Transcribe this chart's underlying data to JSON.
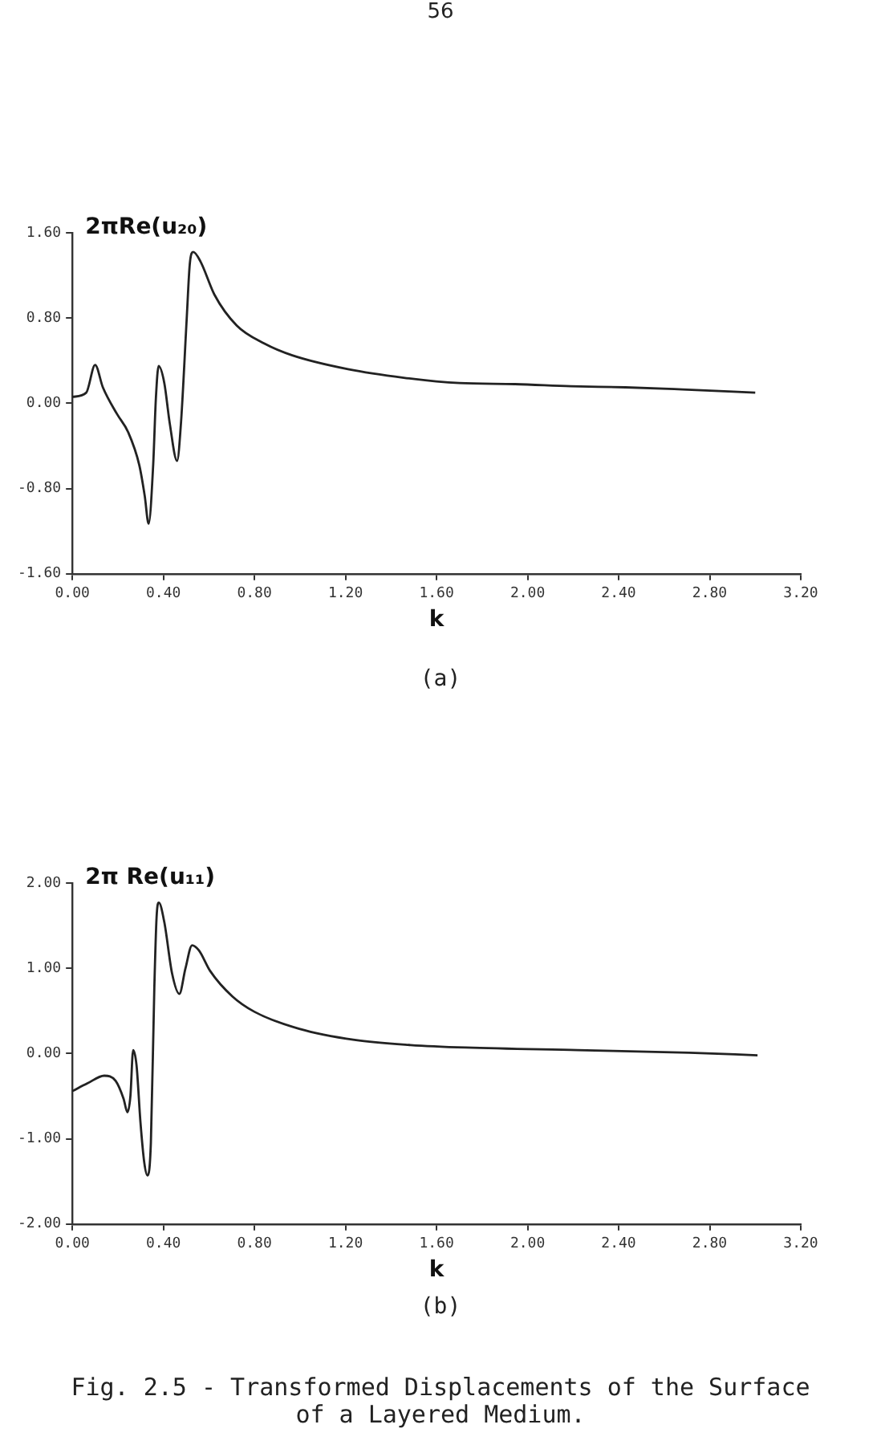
{
  "chart_data": [
    {
      "type": "line",
      "title": "2πRe(u₂₀)",
      "xlabel": "k",
      "annotations": [
        "56",
        "(a)"
      ],
      "xlim": [
        0,
        3.2
      ],
      "xticks": [
        {
          "value": 0,
          "label": "0.00"
        },
        {
          "value": 0.4,
          "label": "0.40"
        },
        {
          "value": 0.8,
          "label": "0.80"
        },
        {
          "value": 1.2,
          "label": "1.20"
        },
        {
          "value": 1.6,
          "label": "1.60"
        },
        {
          "value": 2.0,
          "label": "2.00"
        },
        {
          "value": 2.4,
          "label": "2.40"
        },
        {
          "value": 2.8,
          "label": "2.80"
        },
        {
          "value": 3.2,
          "label": "3.20"
        }
      ],
      "ylim": [
        -1.6,
        1.6
      ],
      "yticks": [
        {
          "value": -1.6,
          "label": "-1.60"
        },
        {
          "value": -0.8,
          "label": "-0.80"
        },
        {
          "value": 0,
          "label": "0.00"
        },
        {
          "value": 0.8,
          "label": "0.80"
        },
        {
          "value": 1.6,
          "label": "1.60"
        }
      ],
      "grid": false,
      "marker": "none",
      "line_style": "solid",
      "series": [
        {
          "color": "#222222",
          "x": [
            0,
            0.061,
            0.1,
            0.134,
            0.196,
            0.245,
            0.294,
            0.318,
            0.335,
            0.355,
            0.367,
            0.379,
            0.404,
            0.428,
            0.46,
            0.477,
            0.502,
            0.516,
            0.531,
            0.563,
            0.624,
            0.722,
            0.844,
            0.966,
            1.211,
            1.456,
            1.7,
            1.945,
            2.19,
            2.43,
            2.68,
            3.0
          ],
          "values": [
            0.06,
            0.1,
            0.36,
            0.15,
            -0.1,
            -0.27,
            -0.58,
            -0.87,
            -1.13,
            -0.58,
            0.05,
            0.35,
            0.19,
            -0.19,
            -0.54,
            -0.19,
            0.78,
            1.31,
            1.42,
            1.33,
            1.02,
            0.73,
            0.56,
            0.45,
            0.32,
            0.24,
            0.19,
            0.18,
            0.16,
            0.15,
            0.13,
            0.1
          ]
        }
      ]
    },
    {
      "type": "line",
      "title": "2π Re(u₁₁)",
      "xlabel": "k",
      "annotations": [
        "(b)",
        "Fig. 2.5 - Transformed Displacements of the Surface of a Layered Medium."
      ],
      "xlim": [
        0,
        3.2
      ],
      "xticks": [
        {
          "value": 0,
          "label": "0.00"
        },
        {
          "value": 0.4,
          "label": "0.40"
        },
        {
          "value": 0.8,
          "label": "0.80"
        },
        {
          "value": 1.2,
          "label": "1.20"
        },
        {
          "value": 1.6,
          "label": "1.60"
        },
        {
          "value": 2.0,
          "label": "2.00"
        },
        {
          "value": 2.4,
          "label": "2.40"
        },
        {
          "value": 2.8,
          "label": "2.80"
        },
        {
          "value": 3.2,
          "label": "3.20"
        }
      ],
      "ylim": [
        -2,
        2
      ],
      "yticks": [
        {
          "value": -2,
          "label": "-2.00"
        },
        {
          "value": -1,
          "label": "-1.00"
        },
        {
          "value": 0,
          "label": "0.00"
        },
        {
          "value": 1,
          "label": "1.00"
        },
        {
          "value": 2,
          "label": "2.00"
        }
      ],
      "grid": false,
      "marker": "none",
      "line_style": "solid",
      "series": [
        {
          "color": "#222222",
          "x": [
            0,
            0.066,
            0.14,
            0.19,
            0.225,
            0.242,
            0.255,
            0.267,
            0.282,
            0.299,
            0.316,
            0.33,
            0.345,
            0.36,
            0.37,
            0.38,
            0.404,
            0.438,
            0.47,
            0.497,
            0.526,
            0.556,
            0.605,
            0.703,
            0.8,
            0.997,
            1.24,
            1.486,
            1.73,
            2.22,
            2.71,
            3.01
          ],
          "values": [
            -0.44,
            -0.35,
            -0.26,
            -0.32,
            -0.53,
            -0.69,
            -0.5,
            0.04,
            -0.14,
            -0.8,
            -1.28,
            -1.43,
            -1.04,
            0.76,
            1.6,
            1.77,
            1.54,
            0.94,
            0.7,
            1.0,
            1.27,
            1.21,
            0.97,
            0.67,
            0.49,
            0.29,
            0.16,
            0.1,
            0.07,
            0.04,
            0.01,
            -0.02
          ]
        }
      ]
    }
  ]
}
